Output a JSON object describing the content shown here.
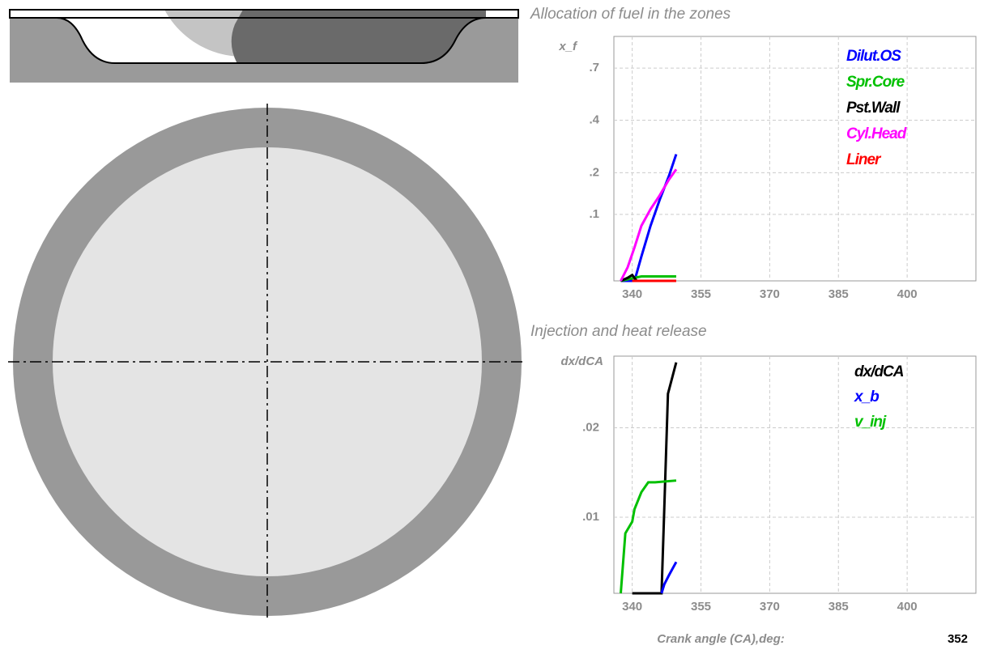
{
  "chart_data": [
    {
      "type": "line",
      "title": "Allocation of fuel in the zones",
      "ylabel": "x_f",
      "yscale": "cbrt",
      "xlim": [
        336,
        415
      ],
      "xticks": [
        340,
        355,
        370,
        385,
        400
      ],
      "ylim": [
        0.02,
        0.94
      ],
      "yticks": [
        {
          "value": 0.1,
          "label": ".1"
        },
        {
          "value": 0.2,
          "label": ".2"
        },
        {
          "value": 0.4,
          "label": ".4"
        },
        {
          "value": 0.7,
          "label": ".7"
        }
      ],
      "grid": true,
      "legend": "upper right",
      "series": [
        {
          "name": "Dilut.OS",
          "color": "#0000ff",
          "x": [
            337.5,
            339,
            340.5,
            342,
            344,
            346,
            348,
            349.6
          ],
          "values": [
            0.02,
            0.02,
            0.02,
            0.04,
            0.08,
            0.13,
            0.19,
            0.26
          ]
        },
        {
          "name": "Spr.Core",
          "color": "#00c000",
          "x": [
            337.5,
            339,
            340.5,
            342,
            344,
            346,
            348,
            349.6
          ],
          "values": [
            0.02,
            0.021,
            0.022,
            0.023,
            0.023,
            0.023,
            0.023,
            0.023
          ]
        },
        {
          "name": "Pst.Wall",
          "color": "#000000",
          "x": [
            337.5,
            339,
            340,
            341,
            342
          ],
          "values": [
            0.02,
            0.022,
            0.024,
            0.02,
            0.02
          ]
        },
        {
          "name": "Cyl.Head",
          "color": "#ff00ff",
          "x": [
            337.5,
            339,
            340.5,
            342,
            344,
            346,
            348,
            349.6
          ],
          "values": [
            0.02,
            0.03,
            0.05,
            0.08,
            0.11,
            0.14,
            0.18,
            0.21
          ]
        },
        {
          "name": "Liner",
          "color": "#ff0000",
          "x": [
            340,
            349.6
          ],
          "values": [
            0.02,
            0.02
          ]
        }
      ]
    },
    {
      "type": "line",
      "title": "Injection and heat release",
      "ylabel": "dx/dCA",
      "xlabel": "Crank angle (CA),deg:",
      "xlim": [
        336,
        415
      ],
      "xticks": [
        340,
        355,
        370,
        385,
        400
      ],
      "ylim": [
        0.0015,
        0.028
      ],
      "yticks": [
        {
          "value": 0.01,
          "label": ".01"
        },
        {
          "value": 0.02,
          "label": ".02"
        }
      ],
      "grid": true,
      "legend": "upper right",
      "series": [
        {
          "name": "dx/dCA",
          "color": "#000000",
          "x": [
            340,
            346.4,
            347,
            347.8,
            349.6
          ],
          "values": [
            0.0015,
            0.0015,
            0.011,
            0.0238,
            0.0273
          ]
        },
        {
          "name": "x_b",
          "color": "#0000ff",
          "x": [
            346.4,
            347,
            348,
            349.6
          ],
          "values": [
            0.0015,
            0.0025,
            0.0035,
            0.005
          ]
        },
        {
          "name": "v_inj",
          "color": "#00c000",
          "x": [
            337.5,
            338.5,
            340,
            340.5,
            342,
            343.5,
            345,
            349.6
          ],
          "values": [
            0.0015,
            0.0082,
            0.0095,
            0.0109,
            0.0128,
            0.0139,
            0.0139,
            0.0141
          ]
        }
      ]
    }
  ],
  "current_crank_angle": 352
}
